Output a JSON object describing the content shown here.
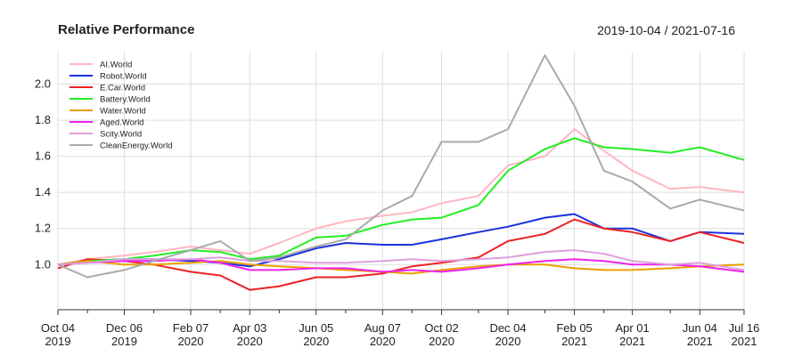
{
  "header": {
    "title": "Relative Performance",
    "date_range": "2019-10-04 / 2021-07-16"
  },
  "chart_data": {
    "type": "line",
    "title": "Relative Performance",
    "date_range_label": "2019-10-04 / 2021-07-16",
    "xlabel": "",
    "ylabel": "",
    "x_range": [
      "2019-10-04",
      "2021-07-16"
    ],
    "ylim": [
      0.75,
      2.18
    ],
    "y_ticks": [
      1.0,
      1.2,
      1.4,
      1.6,
      1.8,
      2.0
    ],
    "y_tick_labels": [
      "1.0",
      "1.2",
      "1.4",
      "1.6",
      "1.8",
      "2.0"
    ],
    "x_ticks": [
      {
        "date": "2019-10-04",
        "line1": "Oct 04",
        "line2": "2019"
      },
      {
        "date": "2019-12-06",
        "line1": "Dec 06",
        "line2": "2019"
      },
      {
        "date": "2020-02-07",
        "line1": "Feb 07",
        "line2": "2020"
      },
      {
        "date": "2020-04-03",
        "line1": "Apr 03",
        "line2": "2020"
      },
      {
        "date": "2020-06-05",
        "line1": "Jun 05",
        "line2": "2020"
      },
      {
        "date": "2020-08-07",
        "line1": "Aug 07",
        "line2": "2020"
      },
      {
        "date": "2020-10-02",
        "line1": "Oct 02",
        "line2": "2020"
      },
      {
        "date": "2020-12-04",
        "line1": "Dec 04",
        "line2": "2020"
      },
      {
        "date": "2021-02-05",
        "line1": "Feb 05",
        "line2": "2021"
      },
      {
        "date": "2021-04-01",
        "line1": "Apr 01",
        "line2": "2021"
      },
      {
        "date": "2021-06-04",
        "line1": "Jun 04",
        "line2": "2021"
      },
      {
        "date": "2021-07-16",
        "line1": "Jul 16",
        "line2": "2021"
      }
    ],
    "minor_ticks": [
      "2019-11-01",
      "2020-01-03",
      "2020-03-06",
      "2020-05-01",
      "2020-07-03",
      "2020-09-04",
      "2020-11-06",
      "2021-01-08",
      "2021-03-05",
      "2021-05-07"
    ],
    "grid": true,
    "legend": "top-left",
    "x": [
      "2019-10-04",
      "2019-11-01",
      "2019-12-06",
      "2020-01-03",
      "2020-02-07",
      "2020-03-06",
      "2020-04-03",
      "2020-05-01",
      "2020-06-05",
      "2020-07-03",
      "2020-08-07",
      "2020-09-04",
      "2020-10-02",
      "2020-11-06",
      "2020-12-04",
      "2021-01-08",
      "2021-02-05",
      "2021-03-05",
      "2021-04-01",
      "2021-05-07",
      "2021-06-04",
      "2021-07-16"
    ],
    "series": [
      {
        "name": "AI.World",
        "color": "#ffb6c1",
        "values": [
          1.0,
          1.03,
          1.05,
          1.07,
          1.1,
          1.08,
          1.06,
          1.12,
          1.2,
          1.24,
          1.27,
          1.29,
          1.34,
          1.38,
          1.55,
          1.6,
          1.75,
          1.63,
          1.52,
          1.42,
          1.43,
          1.4
        ]
      },
      {
        "name": "Robot.World",
        "color": "#1a33dd",
        "values": [
          1.0,
          1.02,
          1.03,
          1.03,
          1.02,
          1.01,
          0.99,
          1.03,
          1.09,
          1.12,
          1.11,
          1.11,
          1.14,
          1.18,
          1.21,
          1.26,
          1.28,
          1.2,
          1.2,
          1.13,
          1.18,
          1.17
        ]
      },
      {
        "name": "E.Car.World",
        "color": "#ee2222",
        "values": [
          0.98,
          1.03,
          1.02,
          1.0,
          0.96,
          0.94,
          0.86,
          0.88,
          0.93,
          0.93,
          0.95,
          0.99,
          1.01,
          1.04,
          1.13,
          1.17,
          1.25,
          1.2,
          1.18,
          1.13,
          1.18,
          1.12
        ]
      },
      {
        "name": "Battery.World",
        "color": "#22ee22",
        "values": [
          1.0,
          1.02,
          1.03,
          1.05,
          1.08,
          1.07,
          1.03,
          1.05,
          1.15,
          1.16,
          1.22,
          1.25,
          1.26,
          1.33,
          1.52,
          1.64,
          1.7,
          1.65,
          1.64,
          1.62,
          1.65,
          1.58
        ]
      },
      {
        "name": "Water.World",
        "color": "#eaa000",
        "values": [
          1.0,
          1.02,
          1.0,
          1.0,
          1.01,
          1.02,
          1.0,
          0.99,
          0.98,
          0.97,
          0.96,
          0.95,
          0.97,
          0.99,
          1.0,
          1.0,
          0.98,
          0.97,
          0.97,
          0.98,
          0.99,
          1.0
        ]
      },
      {
        "name": "Aged.World",
        "color": "#ee22ee",
        "values": [
          1.0,
          1.01,
          1.02,
          1.02,
          1.03,
          1.01,
          0.97,
          0.97,
          0.98,
          0.98,
          0.96,
          0.97,
          0.96,
          0.98,
          1.0,
          1.02,
          1.03,
          1.02,
          1.0,
          1.0,
          0.99,
          0.96
        ]
      },
      {
        "name": "Scity.World",
        "color": "#dda0dd",
        "values": [
          1.0,
          1.01,
          1.03,
          1.03,
          1.03,
          1.04,
          1.02,
          1.02,
          1.01,
          1.01,
          1.02,
          1.03,
          1.02,
          1.03,
          1.04,
          1.07,
          1.08,
          1.06,
          1.02,
          1.0,
          1.01,
          0.97
        ]
      },
      {
        "name": "CleanEnergy.World",
        "color": "#aaaaaa",
        "values": [
          1.0,
          0.93,
          0.97,
          1.02,
          1.08,
          1.13,
          1.02,
          1.04,
          1.1,
          1.14,
          1.3,
          1.38,
          1.68,
          1.68,
          1.75,
          2.16,
          1.88,
          1.52,
          1.46,
          1.31,
          1.36,
          1.3
        ]
      }
    ]
  }
}
